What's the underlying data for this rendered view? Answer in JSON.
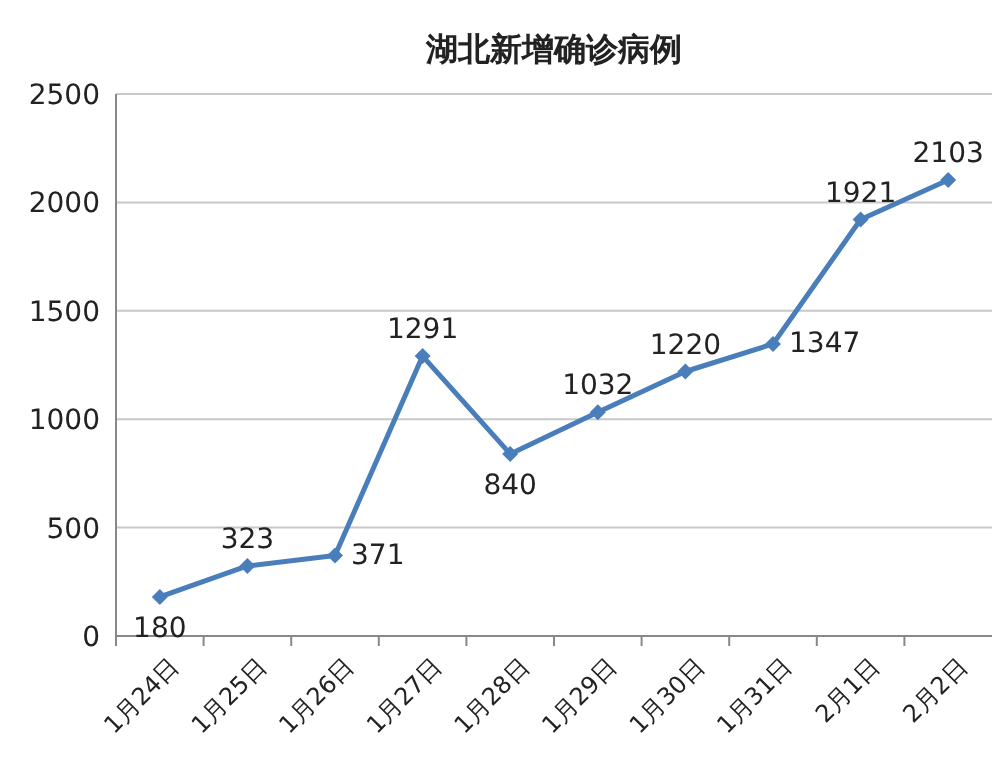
{
  "chart_data": {
    "type": "line",
    "title": "湖北新增确诊病例",
    "categories": [
      "1月24日",
      "1月25日",
      "1月26日",
      "1月27日",
      "1月28日",
      "1月29日",
      "1月30日",
      "1月31日",
      "2月1日",
      "2月2日"
    ],
    "series": [
      {
        "color": "#4a7ebb",
        "values": [
          180,
          323,
          371,
          1291,
          840,
          1032,
          1220,
          1347,
          1921,
          2103
        ]
      }
    ],
    "ylim": [
      0,
      2500
    ],
    "yticks": [
      0,
      500,
      1000,
      1500,
      2000,
      2500
    ],
    "grid": "y",
    "marker": "diamond",
    "data_labels": true
  }
}
